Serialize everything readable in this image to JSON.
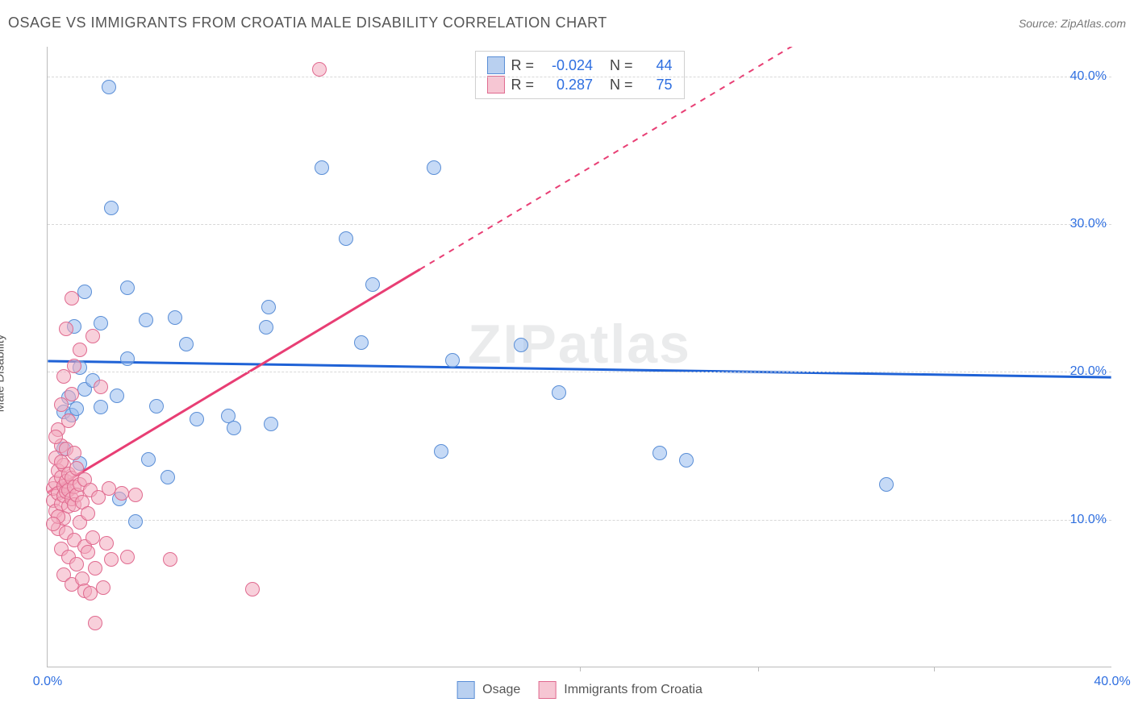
{
  "header": {
    "title": "OSAGE VS IMMIGRANTS FROM CROATIA MALE DISABILITY CORRELATION CHART",
    "source_prefix": "Source: ",
    "source_name": "ZipAtlas.com"
  },
  "chart": {
    "type": "scatter",
    "ylabel": "Male Disability",
    "watermark": "ZIPatlas",
    "background_color": "#ffffff",
    "axis_color": "#bbbbbb",
    "grid_color": "#d8d8d8",
    "tick_label_color": "#2f6fe0",
    "tick_fontsize": 16,
    "x": {
      "min": 0.0,
      "max": 40.0,
      "label_min": "0.0%",
      "label_max": "40.0%",
      "minor_ticks": [
        20.0,
        26.7,
        33.3
      ]
    },
    "y": {
      "min": 0.0,
      "max": 42.0,
      "gridlines": [
        10.0,
        20.0,
        30.0,
        40.0
      ],
      "labels": [
        "10.0%",
        "20.0%",
        "30.0%",
        "40.0%"
      ]
    },
    "series": [
      {
        "name": "Osage",
        "color_fill": "rgba(151,187,238,0.55)",
        "color_stroke": "#5a8ed6",
        "swatch_fill": "#b9d0f0",
        "swatch_border": "#5a8ed6",
        "marker_radius": 9,
        "r_label": "R = ",
        "r_value": "-0.024",
        "n_label": "N = ",
        "n_value": "44",
        "trend": {
          "y_at_xmin": 20.7,
          "y_at_xmax": 19.6,
          "solid_until_x": 40.0,
          "color": "#1f62d6",
          "width": 3
        },
        "points": [
          {
            "x": 0.6,
            "y": 14.8
          },
          {
            "x": 0.6,
            "y": 17.3
          },
          {
            "x": 0.8,
            "y": 18.3
          },
          {
            "x": 0.9,
            "y": 17.1
          },
          {
            "x": 1.0,
            "y": 23.1
          },
          {
            "x": 1.1,
            "y": 17.5
          },
          {
            "x": 1.2,
            "y": 13.8
          },
          {
            "x": 1.2,
            "y": 20.3
          },
          {
            "x": 1.4,
            "y": 18.8
          },
          {
            "x": 1.4,
            "y": 25.4
          },
          {
            "x": 2.0,
            "y": 17.6
          },
          {
            "x": 2.0,
            "y": 23.3
          },
          {
            "x": 2.3,
            "y": 39.3
          },
          {
            "x": 2.4,
            "y": 31.1
          },
          {
            "x": 2.6,
            "y": 18.4
          },
          {
            "x": 2.7,
            "y": 11.4
          },
          {
            "x": 3.0,
            "y": 25.7
          },
          {
            "x": 3.3,
            "y": 9.9
          },
          {
            "x": 3.7,
            "y": 23.5
          },
          {
            "x": 3.8,
            "y": 14.1
          },
          {
            "x": 4.1,
            "y": 17.7
          },
          {
            "x": 4.5,
            "y": 12.9
          },
          {
            "x": 4.8,
            "y": 23.7
          },
          {
            "x": 5.2,
            "y": 21.9
          },
          {
            "x": 6.8,
            "y": 17.0
          },
          {
            "x": 7.0,
            "y": 16.2
          },
          {
            "x": 8.2,
            "y": 23.0
          },
          {
            "x": 8.3,
            "y": 24.4
          },
          {
            "x": 8.4,
            "y": 16.5
          },
          {
            "x": 10.3,
            "y": 33.8
          },
          {
            "x": 11.2,
            "y": 29.0
          },
          {
            "x": 11.8,
            "y": 22.0
          },
          {
            "x": 12.2,
            "y": 25.9
          },
          {
            "x": 14.5,
            "y": 33.8
          },
          {
            "x": 14.8,
            "y": 14.6
          },
          {
            "x": 15.2,
            "y": 20.8
          },
          {
            "x": 17.8,
            "y": 21.8
          },
          {
            "x": 19.2,
            "y": 18.6
          },
          {
            "x": 23.0,
            "y": 14.5
          },
          {
            "x": 24.0,
            "y": 14.0
          },
          {
            "x": 31.5,
            "y": 12.4
          },
          {
            "x": 5.6,
            "y": 16.8
          },
          {
            "x": 3.0,
            "y": 20.9
          },
          {
            "x": 1.7,
            "y": 19.4
          }
        ]
      },
      {
        "name": "Immigrants from Croatia",
        "color_fill": "rgba(243,170,190,0.55)",
        "color_stroke": "#e06a8f",
        "swatch_fill": "#f6c6d3",
        "swatch_border": "#e06a8f",
        "marker_radius": 9,
        "r_label": "R = ",
        "r_value": "0.287",
        "n_label": "N = ",
        "n_value": "75",
        "trend": {
          "y_at_xmin": 11.8,
          "y_at_xmax": 55.0,
          "solid_until_x": 14.0,
          "color": "#e83e74",
          "width": 3
        },
        "points": [
          {
            "x": 0.2,
            "y": 11.3
          },
          {
            "x": 0.2,
            "y": 12.1
          },
          {
            "x": 0.3,
            "y": 10.6
          },
          {
            "x": 0.3,
            "y": 12.5
          },
          {
            "x": 0.3,
            "y": 14.2
          },
          {
            "x": 0.4,
            "y": 9.4
          },
          {
            "x": 0.4,
            "y": 11.8
          },
          {
            "x": 0.4,
            "y": 13.3
          },
          {
            "x": 0.4,
            "y": 16.1
          },
          {
            "x": 0.5,
            "y": 8.0
          },
          {
            "x": 0.5,
            "y": 11.1
          },
          {
            "x": 0.5,
            "y": 12.9
          },
          {
            "x": 0.5,
            "y": 15.0
          },
          {
            "x": 0.5,
            "y": 17.8
          },
          {
            "x": 0.6,
            "y": 6.3
          },
          {
            "x": 0.6,
            "y": 10.1
          },
          {
            "x": 0.6,
            "y": 11.6
          },
          {
            "x": 0.6,
            "y": 12.3
          },
          {
            "x": 0.6,
            "y": 13.7
          },
          {
            "x": 0.6,
            "y": 19.7
          },
          {
            "x": 0.7,
            "y": 9.1
          },
          {
            "x": 0.7,
            "y": 11.9
          },
          {
            "x": 0.7,
            "y": 12.6
          },
          {
            "x": 0.7,
            "y": 14.8
          },
          {
            "x": 0.7,
            "y": 22.9
          },
          {
            "x": 0.8,
            "y": 7.5
          },
          {
            "x": 0.8,
            "y": 10.9
          },
          {
            "x": 0.8,
            "y": 12.0
          },
          {
            "x": 0.8,
            "y": 13.1
          },
          {
            "x": 0.8,
            "y": 16.7
          },
          {
            "x": 0.9,
            "y": 5.6
          },
          {
            "x": 0.9,
            "y": 11.4
          },
          {
            "x": 0.9,
            "y": 12.8
          },
          {
            "x": 0.9,
            "y": 18.5
          },
          {
            "x": 0.9,
            "y": 25.0
          },
          {
            "x": 1.0,
            "y": 8.6
          },
          {
            "x": 1.0,
            "y": 11.0
          },
          {
            "x": 1.0,
            "y": 12.2
          },
          {
            "x": 1.0,
            "y": 14.5
          },
          {
            "x": 1.0,
            "y": 20.4
          },
          {
            "x": 1.1,
            "y": 7.0
          },
          {
            "x": 1.1,
            "y": 11.7
          },
          {
            "x": 1.1,
            "y": 13.5
          },
          {
            "x": 1.2,
            "y": 9.8
          },
          {
            "x": 1.2,
            "y": 12.4
          },
          {
            "x": 1.2,
            "y": 21.5
          },
          {
            "x": 1.3,
            "y": 6.0
          },
          {
            "x": 1.3,
            "y": 11.2
          },
          {
            "x": 1.4,
            "y": 5.2
          },
          {
            "x": 1.4,
            "y": 8.2
          },
          {
            "x": 1.4,
            "y": 12.7
          },
          {
            "x": 1.5,
            "y": 7.8
          },
          {
            "x": 1.5,
            "y": 10.4
          },
          {
            "x": 1.6,
            "y": 5.0
          },
          {
            "x": 1.6,
            "y": 12.0
          },
          {
            "x": 1.7,
            "y": 8.8
          },
          {
            "x": 1.7,
            "y": 22.4
          },
          {
            "x": 1.8,
            "y": 3.0
          },
          {
            "x": 1.8,
            "y": 6.7
          },
          {
            "x": 1.9,
            "y": 11.5
          },
          {
            "x": 2.0,
            "y": 19.0
          },
          {
            "x": 2.1,
            "y": 5.4
          },
          {
            "x": 2.2,
            "y": 8.4
          },
          {
            "x": 2.3,
            "y": 12.1
          },
          {
            "x": 2.4,
            "y": 7.3
          },
          {
            "x": 2.8,
            "y": 11.8
          },
          {
            "x": 3.0,
            "y": 7.5
          },
          {
            "x": 3.3,
            "y": 11.7
          },
          {
            "x": 4.6,
            "y": 7.3
          },
          {
            "x": 7.7,
            "y": 5.3
          },
          {
            "x": 10.2,
            "y": 40.5
          },
          {
            "x": 0.3,
            "y": 15.6
          },
          {
            "x": 0.4,
            "y": 10.2
          },
          {
            "x": 0.5,
            "y": 13.9
          },
          {
            "x": 0.2,
            "y": 9.7
          }
        ]
      }
    ]
  }
}
